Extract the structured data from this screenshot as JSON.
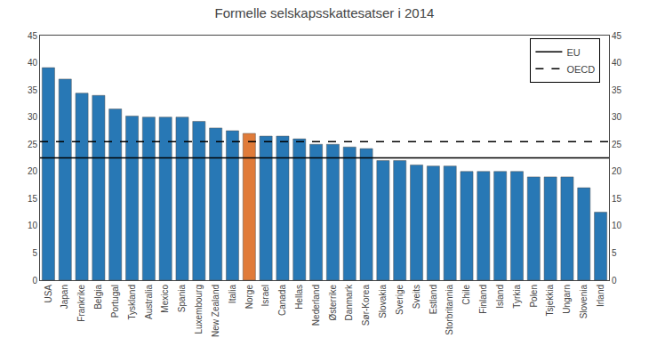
{
  "chart_data": {
    "type": "bar",
    "title": "Formelle selskapsskattesatser i 2014",
    "categories": [
      "USA",
      "Japan",
      "Frankrike",
      "Belgia",
      "Portugal",
      "Tyskland",
      "Australia",
      "Mexico",
      "Spania",
      "Luxembourg",
      "New Zealand",
      "Italia",
      "Norge",
      "Israel",
      "Canada",
      "Hellas",
      "Nederland",
      "Østerrike",
      "Danmark",
      "Sør-Korea",
      "Slovakia",
      "Sverige",
      "Sveits",
      "Estland",
      "Storbritannia",
      "Chile",
      "Finland",
      "Island",
      "Tyrkia",
      "Polen",
      "Tsjekkia",
      "Ungarn",
      "Slovenia",
      "Irland"
    ],
    "values": [
      39.1,
      37.0,
      34.4,
      33.99,
      31.5,
      30.2,
      30.0,
      30.0,
      30.0,
      29.22,
      28.0,
      27.5,
      27.0,
      26.5,
      26.5,
      26.0,
      25.0,
      25.0,
      24.5,
      24.2,
      22.0,
      22.0,
      21.2,
      21.0,
      21.0,
      20.0,
      20.0,
      20.0,
      20.0,
      19.0,
      19.0,
      19.0,
      17.0,
      12.5
    ],
    "colors": [
      "#2878b5",
      "#2878b5",
      "#2878b5",
      "#2878b5",
      "#2878b5",
      "#2878b5",
      "#2878b5",
      "#2878b5",
      "#2878b5",
      "#2878b5",
      "#2878b5",
      "#2878b5",
      "#e07b39",
      "#2878b5",
      "#2878b5",
      "#2878b5",
      "#2878b5",
      "#2878b5",
      "#2878b5",
      "#2878b5",
      "#2878b5",
      "#2878b5",
      "#2878b5",
      "#2878b5",
      "#2878b5",
      "#2878b5",
      "#2878b5",
      "#2878b5",
      "#2878b5",
      "#2878b5",
      "#2878b5",
      "#2878b5",
      "#2878b5",
      "#2878b5"
    ],
    "lines": [
      {
        "name": "EU",
        "value": 22.5,
        "color": "#000000",
        "line_style": "solid"
      },
      {
        "name": "OECD",
        "value": 25.5,
        "color": "#000000",
        "line_style": "dashed"
      }
    ],
    "ylim": [
      0,
      45
    ],
    "yticks": [
      0,
      5,
      10,
      15,
      20,
      25,
      30,
      35,
      40,
      45
    ],
    "y2lim": [
      0,
      45
    ],
    "y2ticks": [
      0,
      5,
      10,
      15,
      20,
      25,
      30,
      35,
      40,
      45
    ],
    "legend": "upper right",
    "grid": false
  }
}
